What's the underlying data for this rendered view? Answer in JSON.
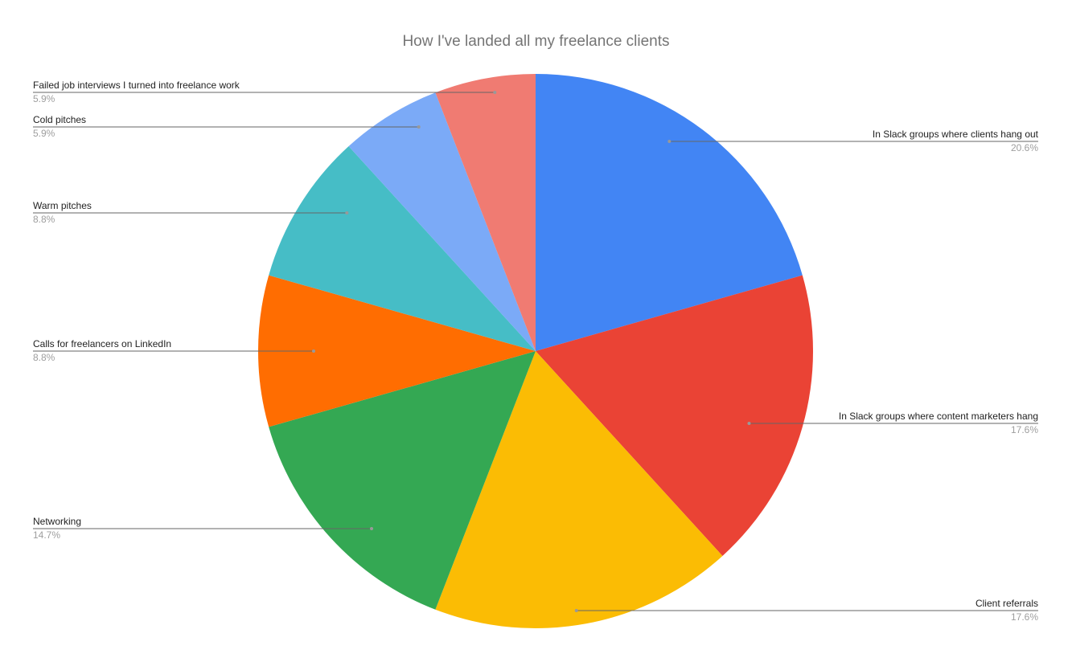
{
  "chart_data": {
    "type": "pie",
    "title": "How I've landed all my freelance clients",
    "slices": [
      {
        "label": "In Slack groups where clients hang out",
        "value": 7,
        "percent": "20.6%",
        "color": "#4285F4"
      },
      {
        "label": "In Slack groups where content marketers hang",
        "value": 6,
        "percent": "17.6%",
        "color": "#EA4335"
      },
      {
        "label": "Client referrals",
        "value": 6,
        "percent": "17.6%",
        "color": "#FBBC04"
      },
      {
        "label": "Networking",
        "value": 5,
        "percent": "14.7%",
        "color": "#34A853"
      },
      {
        "label": "Calls for freelancers on LinkedIn",
        "value": 3,
        "percent": "8.8%",
        "color": "#FF6D01"
      },
      {
        "label": "Warm pitches",
        "value": 3,
        "percent": "8.8%",
        "color": "#46BDC6"
      },
      {
        "label": "Cold pitches",
        "value": 2,
        "percent": "5.9%",
        "color": "#7BAAF7"
      },
      {
        "label": "Failed job interviews I turned into freelance work",
        "value": 2,
        "percent": "5.9%",
        "color": "#F07B72"
      }
    ],
    "start_angle": "top",
    "direction": "clockwise",
    "legend": "labeled"
  }
}
